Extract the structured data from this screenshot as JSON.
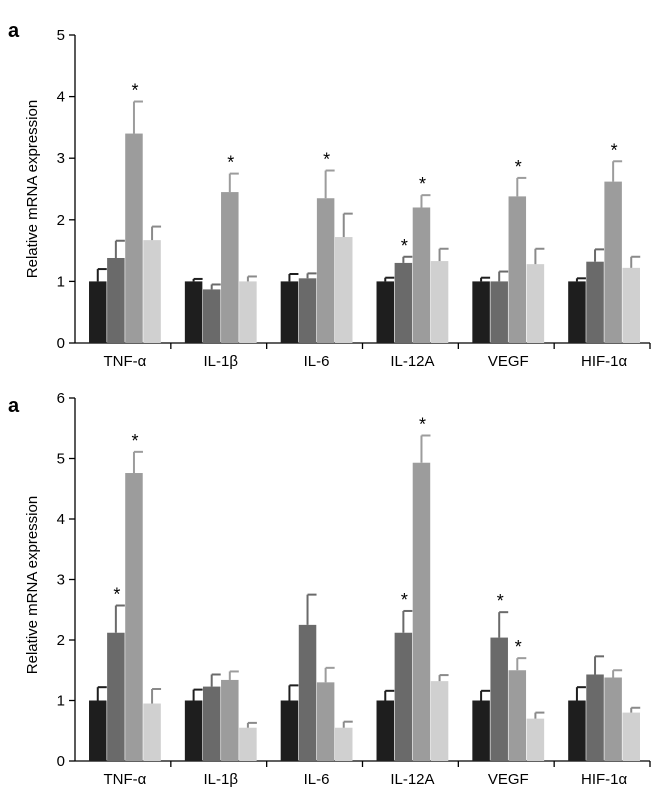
{
  "chart_data": [
    {
      "panel_label": "a",
      "type": "bar",
      "ylabel": "Relative mRNA expression",
      "ylim": [
        0,
        5
      ],
      "yticks": [
        0,
        1,
        2,
        3,
        4,
        5
      ],
      "categories": [
        "TNF-α",
        "IL-1β",
        "IL-6",
        "IL-12A",
        "VEGF",
        "HIF-1α"
      ],
      "series": [
        {
          "color": "#1e1e1e",
          "values": [
            1.0,
            1.0,
            1.0,
            1.0,
            1.0,
            1.0
          ],
          "errors": [
            0.2,
            0.04,
            0.12,
            0.06,
            0.06,
            0.05
          ]
        },
        {
          "color": "#6a6a6a",
          "values": [
            1.38,
            0.87,
            1.05,
            1.3,
            1.0,
            1.32
          ],
          "errors": [
            0.28,
            0.08,
            0.08,
            0.1,
            0.16,
            0.2
          ]
        },
        {
          "color": "#9c9c9c",
          "values": [
            3.4,
            2.45,
            2.35,
            2.2,
            2.38,
            2.62
          ],
          "errors": [
            0.52,
            0.3,
            0.45,
            0.2,
            0.3,
            0.33
          ]
        },
        {
          "color": "#d0d0d0",
          "values": [
            1.67,
            1.0,
            1.72,
            1.33,
            1.28,
            1.22
          ],
          "errors": [
            0.22,
            0.08,
            0.38,
            0.2,
            0.25,
            0.18
          ]
        }
      ],
      "significance": [
        {
          "category": 0,
          "series": 2,
          "label": "*"
        },
        {
          "category": 1,
          "series": 2,
          "label": "*"
        },
        {
          "category": 2,
          "series": 2,
          "label": "*"
        },
        {
          "category": 3,
          "series": 1,
          "label": "*"
        },
        {
          "category": 3,
          "series": 2,
          "label": "*"
        },
        {
          "category": 4,
          "series": 2,
          "label": "*"
        },
        {
          "category": 5,
          "series": 2,
          "label": "*"
        }
      ]
    },
    {
      "panel_label": "a",
      "type": "bar",
      "ylabel": "Relative mRNA expression",
      "ylim": [
        0,
        6
      ],
      "yticks": [
        0,
        1,
        2,
        3,
        4,
        5,
        6
      ],
      "categories": [
        "TNF-α",
        "IL-1β",
        "IL-6",
        "IL-12A",
        "VEGF",
        "HIF-1α"
      ],
      "series": [
        {
          "color": "#1e1e1e",
          "values": [
            1.0,
            1.0,
            1.0,
            1.0,
            1.0,
            1.0
          ],
          "errors": [
            0.22,
            0.18,
            0.25,
            0.16,
            0.16,
            0.22
          ]
        },
        {
          "color": "#6a6a6a",
          "values": [
            2.12,
            1.23,
            2.25,
            2.12,
            2.04,
            1.43
          ],
          "errors": [
            0.45,
            0.2,
            0.5,
            0.36,
            0.42,
            0.3
          ]
        },
        {
          "color": "#9c9c9c",
          "values": [
            4.76,
            1.34,
            1.3,
            4.93,
            1.5,
            1.38
          ],
          "errors": [
            0.35,
            0.14,
            0.24,
            0.45,
            0.2,
            0.12
          ]
        },
        {
          "color": "#d0d0d0",
          "values": [
            0.95,
            0.55,
            0.55,
            1.32,
            0.7,
            0.8
          ],
          "errors": [
            0.24,
            0.08,
            0.1,
            0.1,
            0.1,
            0.08
          ]
        }
      ],
      "significance": [
        {
          "category": 0,
          "series": 1,
          "label": "*"
        },
        {
          "category": 0,
          "series": 2,
          "label": "*"
        },
        {
          "category": 3,
          "series": 1,
          "label": "*"
        },
        {
          "category": 3,
          "series": 2,
          "label": "*"
        },
        {
          "category": 4,
          "series": 1,
          "label": "*"
        },
        {
          "category": 4,
          "series": 2,
          "label": "*"
        }
      ]
    }
  ]
}
